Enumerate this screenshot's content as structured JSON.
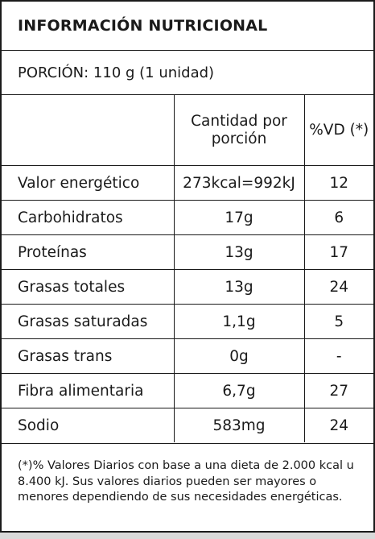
{
  "title": "INFORMACIÓN NUTRICIONAL",
  "portion": "PORCIÓN: 110 g (1 unidad)",
  "headers": {
    "blank": "",
    "quantity": "Cantidad por porción",
    "vd": "%VD (*)"
  },
  "rows": [
    {
      "name": "Valor energético",
      "value": "273kcal=992kJ",
      "vd": "12"
    },
    {
      "name": "Carbohidratos",
      "value": "17g",
      "vd": "6"
    },
    {
      "name": "Proteínas",
      "value": "13g",
      "vd": "17"
    },
    {
      "name": "Grasas totales",
      "value": "13g",
      "vd": "24"
    },
    {
      "name": "Grasas saturadas",
      "value": "1,1g",
      "vd": "5"
    },
    {
      "name": "Grasas trans",
      "value": "0g",
      "vd": "-"
    },
    {
      "name": "Fibra alimentaria",
      "value": "6,7g",
      "vd": "27"
    },
    {
      "name": "Sodio",
      "value": "583mg",
      "vd": "24"
    }
  ],
  "footnote": "(*)% Valores Diarios con base a una dieta de 2.000 kcal u 8.400 kJ. Sus valores diarios pueden ser mayores o menores dependiendo de sus necesidades energéticas."
}
